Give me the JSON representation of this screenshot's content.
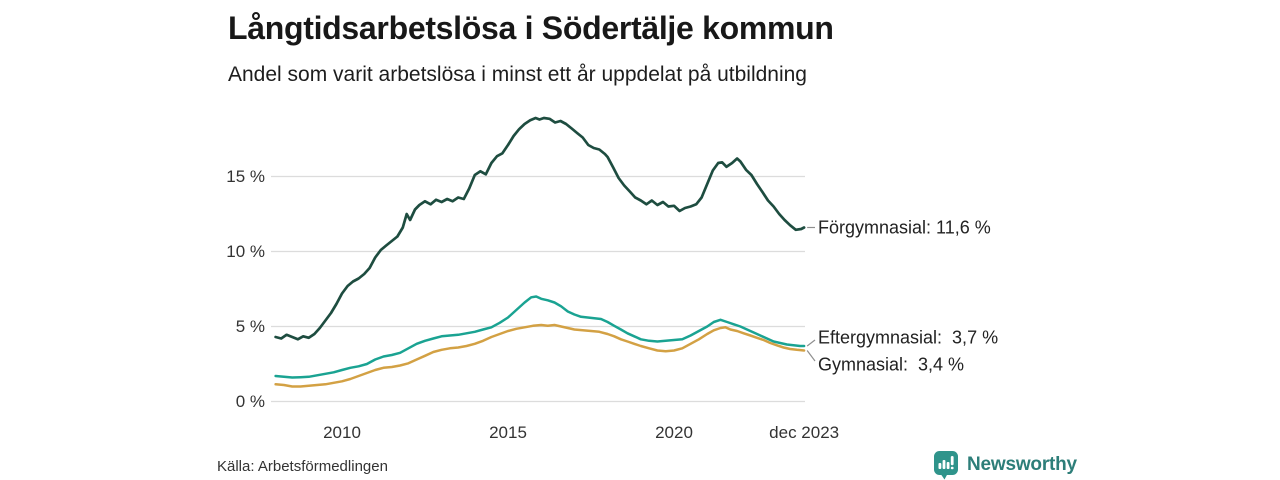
{
  "header": {
    "title": "Långtidsarbetslösa i Södertälje kommun",
    "subtitle": "Andel som varit arbetslösa i minst ett år uppdelat på utbildning"
  },
  "footer": {
    "source": "Källa: Arbetsförmedlingen",
    "branding": {
      "name": "Newsworthy",
      "logo_icon": "chart-speech-bubble-icon",
      "logo_color": "#2f948b",
      "wordmark_color": "#2d7e79"
    }
  },
  "colors": {
    "background": "#ffffff",
    "grid": "#dcdcdc",
    "connector": "#8f8f8f",
    "text_dark": "#181818",
    "axis_text": "#333333"
  },
  "chart_data": {
    "type": "line",
    "title": "Långtidsarbetslösa i Södertälje kommun",
    "subtitle": "Andel som varit arbetslösa i minst ett år uppdelat på utbildning",
    "unit": "%",
    "grid": true,
    "legend_position": "end-labels-right",
    "x_axis": {
      "range": [
        2007.95,
        2023.95
      ],
      "ticks": [
        {
          "t": 2010,
          "label": "2010"
        },
        {
          "t": 2015,
          "label": "2015"
        },
        {
          "t": 2020,
          "label": "2020"
        },
        {
          "t": 2023.92,
          "label": "dec 2023"
        }
      ]
    },
    "y_axis": {
      "range": [
        0,
        19.5
      ],
      "ticks": [
        {
          "v": 0,
          "label": "0 %"
        },
        {
          "v": 5,
          "label": "5 %"
        },
        {
          "v": 10,
          "label": "10 %"
        },
        {
          "v": 15,
          "label": "15 %"
        }
      ]
    },
    "series": [
      {
        "name": "Förgymnasial",
        "color": "#1e4d40",
        "stroke_width": 2.7,
        "end_value": 11.6,
        "end_label": "Förgymnasial: 11,6 %",
        "label_center_y_pct": 11.6,
        "points": [
          [
            2008.0,
            4.3
          ],
          [
            2008.17,
            4.2
          ],
          [
            2008.33,
            4.45
          ],
          [
            2008.5,
            4.3
          ],
          [
            2008.67,
            4.15
          ],
          [
            2008.83,
            4.35
          ],
          [
            2009.0,
            4.25
          ],
          [
            2009.17,
            4.5
          ],
          [
            2009.33,
            4.9
          ],
          [
            2009.5,
            5.4
          ],
          [
            2009.67,
            5.9
          ],
          [
            2009.83,
            6.5
          ],
          [
            2010.0,
            7.2
          ],
          [
            2010.17,
            7.7
          ],
          [
            2010.33,
            8.0
          ],
          [
            2010.5,
            8.2
          ],
          [
            2010.67,
            8.5
          ],
          [
            2010.83,
            8.9
          ],
          [
            2011.0,
            9.6
          ],
          [
            2011.17,
            10.1
          ],
          [
            2011.33,
            10.4
          ],
          [
            2011.5,
            10.7
          ],
          [
            2011.67,
            11.0
          ],
          [
            2011.83,
            11.6
          ],
          [
            2011.95,
            12.5
          ],
          [
            2012.05,
            12.1
          ],
          [
            2012.2,
            12.8
          ],
          [
            2012.33,
            13.1
          ],
          [
            2012.5,
            13.35
          ],
          [
            2012.67,
            13.15
          ],
          [
            2012.83,
            13.45
          ],
          [
            2013.0,
            13.3
          ],
          [
            2013.17,
            13.5
          ],
          [
            2013.33,
            13.35
          ],
          [
            2013.5,
            13.6
          ],
          [
            2013.67,
            13.5
          ],
          [
            2013.83,
            14.2
          ],
          [
            2014.0,
            15.1
          ],
          [
            2014.17,
            15.35
          ],
          [
            2014.33,
            15.15
          ],
          [
            2014.5,
            15.9
          ],
          [
            2014.67,
            16.35
          ],
          [
            2014.83,
            16.55
          ],
          [
            2015.0,
            17.1
          ],
          [
            2015.17,
            17.7
          ],
          [
            2015.33,
            18.15
          ],
          [
            2015.5,
            18.5
          ],
          [
            2015.67,
            18.75
          ],
          [
            2015.83,
            18.9
          ],
          [
            2015.95,
            18.8
          ],
          [
            2016.08,
            18.9
          ],
          [
            2016.25,
            18.85
          ],
          [
            2016.42,
            18.6
          ],
          [
            2016.58,
            18.7
          ],
          [
            2016.75,
            18.5
          ],
          [
            2016.92,
            18.2
          ],
          [
            2017.08,
            17.9
          ],
          [
            2017.25,
            17.6
          ],
          [
            2017.42,
            17.1
          ],
          [
            2017.58,
            16.9
          ],
          [
            2017.75,
            16.8
          ],
          [
            2017.92,
            16.5
          ],
          [
            2018.0,
            16.3
          ],
          [
            2018.17,
            15.6
          ],
          [
            2018.33,
            14.9
          ],
          [
            2018.5,
            14.4
          ],
          [
            2018.67,
            14.0
          ],
          [
            2018.83,
            13.6
          ],
          [
            2019.0,
            13.4
          ],
          [
            2019.17,
            13.15
          ],
          [
            2019.33,
            13.4
          ],
          [
            2019.5,
            13.1
          ],
          [
            2019.67,
            13.3
          ],
          [
            2019.83,
            13.0
          ],
          [
            2020.0,
            13.05
          ],
          [
            2020.17,
            12.7
          ],
          [
            2020.33,
            12.9
          ],
          [
            2020.5,
            13.0
          ],
          [
            2020.67,
            13.15
          ],
          [
            2020.83,
            13.6
          ],
          [
            2021.0,
            14.5
          ],
          [
            2021.17,
            15.4
          ],
          [
            2021.33,
            15.9
          ],
          [
            2021.45,
            15.95
          ],
          [
            2021.58,
            15.65
          ],
          [
            2021.75,
            15.9
          ],
          [
            2021.9,
            16.2
          ],
          [
            2022.0,
            16.0
          ],
          [
            2022.17,
            15.45
          ],
          [
            2022.33,
            15.1
          ],
          [
            2022.5,
            14.5
          ],
          [
            2022.67,
            13.95
          ],
          [
            2022.83,
            13.4
          ],
          [
            2023.0,
            13.0
          ],
          [
            2023.17,
            12.5
          ],
          [
            2023.33,
            12.1
          ],
          [
            2023.5,
            11.75
          ],
          [
            2023.67,
            11.45
          ],
          [
            2023.83,
            11.5
          ],
          [
            2023.92,
            11.6
          ]
        ]
      },
      {
        "name": "Eftergymnasial",
        "color": "#1aa392",
        "stroke_width": 2.5,
        "end_value": 3.7,
        "end_label": "Eftergymnasial:  3,7 %",
        "label_center_y_pct": 4.2,
        "points": [
          [
            2008.0,
            1.7
          ],
          [
            2008.25,
            1.65
          ],
          [
            2008.5,
            1.6
          ],
          [
            2008.75,
            1.62
          ],
          [
            2009.0,
            1.65
          ],
          [
            2009.25,
            1.75
          ],
          [
            2009.5,
            1.85
          ],
          [
            2009.75,
            1.95
          ],
          [
            2010.0,
            2.1
          ],
          [
            2010.25,
            2.25
          ],
          [
            2010.5,
            2.35
          ],
          [
            2010.75,
            2.5
          ],
          [
            2011.0,
            2.8
          ],
          [
            2011.25,
            3.0
          ],
          [
            2011.5,
            3.1
          ],
          [
            2011.75,
            3.25
          ],
          [
            2012.0,
            3.55
          ],
          [
            2012.25,
            3.85
          ],
          [
            2012.5,
            4.05
          ],
          [
            2012.75,
            4.2
          ],
          [
            2013.0,
            4.35
          ],
          [
            2013.25,
            4.4
          ],
          [
            2013.5,
            4.45
          ],
          [
            2013.75,
            4.55
          ],
          [
            2014.0,
            4.65
          ],
          [
            2014.25,
            4.8
          ],
          [
            2014.5,
            4.95
          ],
          [
            2014.75,
            5.25
          ],
          [
            2015.0,
            5.6
          ],
          [
            2015.25,
            6.1
          ],
          [
            2015.5,
            6.6
          ],
          [
            2015.7,
            6.95
          ],
          [
            2015.85,
            7.0
          ],
          [
            2016.0,
            6.85
          ],
          [
            2016.2,
            6.75
          ],
          [
            2016.4,
            6.6
          ],
          [
            2016.6,
            6.35
          ],
          [
            2016.8,
            6.0
          ],
          [
            2017.0,
            5.8
          ],
          [
            2017.2,
            5.65
          ],
          [
            2017.4,
            5.6
          ],
          [
            2017.6,
            5.55
          ],
          [
            2017.8,
            5.5
          ],
          [
            2018.0,
            5.3
          ],
          [
            2018.2,
            5.05
          ],
          [
            2018.4,
            4.8
          ],
          [
            2018.6,
            4.55
          ],
          [
            2018.8,
            4.35
          ],
          [
            2019.0,
            4.15
          ],
          [
            2019.25,
            4.05
          ],
          [
            2019.5,
            4.0
          ],
          [
            2019.75,
            4.05
          ],
          [
            2020.0,
            4.1
          ],
          [
            2020.25,
            4.15
          ],
          [
            2020.5,
            4.4
          ],
          [
            2020.75,
            4.7
          ],
          [
            2021.0,
            5.0
          ],
          [
            2021.2,
            5.3
          ],
          [
            2021.4,
            5.45
          ],
          [
            2021.6,
            5.3
          ],
          [
            2021.8,
            5.15
          ],
          [
            2022.0,
            5.0
          ],
          [
            2022.2,
            4.8
          ],
          [
            2022.4,
            4.6
          ],
          [
            2022.6,
            4.4
          ],
          [
            2022.8,
            4.2
          ],
          [
            2023.0,
            4.0
          ],
          [
            2023.2,
            3.9
          ],
          [
            2023.4,
            3.8
          ],
          [
            2023.6,
            3.75
          ],
          [
            2023.8,
            3.7
          ],
          [
            2023.92,
            3.7
          ]
        ]
      },
      {
        "name": "Gymnasial",
        "color": "#d3a144",
        "stroke_width": 2.5,
        "end_value": 3.4,
        "end_label": "Gymnasial:  3,4 %",
        "label_center_y_pct": 2.4,
        "points": [
          [
            2008.0,
            1.15
          ],
          [
            2008.25,
            1.1
          ],
          [
            2008.5,
            1.0
          ],
          [
            2008.75,
            1.0
          ],
          [
            2009.0,
            1.05
          ],
          [
            2009.25,
            1.1
          ],
          [
            2009.5,
            1.15
          ],
          [
            2009.75,
            1.25
          ],
          [
            2010.0,
            1.35
          ],
          [
            2010.25,
            1.5
          ],
          [
            2010.5,
            1.7
          ],
          [
            2010.75,
            1.9
          ],
          [
            2011.0,
            2.1
          ],
          [
            2011.25,
            2.25
          ],
          [
            2011.5,
            2.3
          ],
          [
            2011.75,
            2.4
          ],
          [
            2012.0,
            2.55
          ],
          [
            2012.25,
            2.8
          ],
          [
            2012.5,
            3.05
          ],
          [
            2012.75,
            3.3
          ],
          [
            2013.0,
            3.45
          ],
          [
            2013.25,
            3.55
          ],
          [
            2013.5,
            3.6
          ],
          [
            2013.75,
            3.7
          ],
          [
            2014.0,
            3.85
          ],
          [
            2014.25,
            4.05
          ],
          [
            2014.5,
            4.3
          ],
          [
            2014.75,
            4.5
          ],
          [
            2015.0,
            4.7
          ],
          [
            2015.25,
            4.85
          ],
          [
            2015.5,
            4.95
          ],
          [
            2015.75,
            5.05
          ],
          [
            2016.0,
            5.1
          ],
          [
            2016.2,
            5.05
          ],
          [
            2016.4,
            5.1
          ],
          [
            2016.6,
            5.0
          ],
          [
            2016.8,
            4.9
          ],
          [
            2017.0,
            4.8
          ],
          [
            2017.25,
            4.75
          ],
          [
            2017.5,
            4.7
          ],
          [
            2017.75,
            4.65
          ],
          [
            2018.0,
            4.5
          ],
          [
            2018.2,
            4.35
          ],
          [
            2018.4,
            4.15
          ],
          [
            2018.6,
            4.0
          ],
          [
            2018.8,
            3.85
          ],
          [
            2019.0,
            3.7
          ],
          [
            2019.25,
            3.55
          ],
          [
            2019.5,
            3.4
          ],
          [
            2019.75,
            3.35
          ],
          [
            2020.0,
            3.4
          ],
          [
            2020.25,
            3.55
          ],
          [
            2020.5,
            3.85
          ],
          [
            2020.75,
            4.15
          ],
          [
            2021.0,
            4.5
          ],
          [
            2021.2,
            4.75
          ],
          [
            2021.4,
            4.9
          ],
          [
            2021.55,
            4.95
          ],
          [
            2021.7,
            4.8
          ],
          [
            2021.9,
            4.7
          ],
          [
            2022.1,
            4.55
          ],
          [
            2022.3,
            4.4
          ],
          [
            2022.5,
            4.25
          ],
          [
            2022.7,
            4.1
          ],
          [
            2022.9,
            3.9
          ],
          [
            2023.1,
            3.75
          ],
          [
            2023.3,
            3.6
          ],
          [
            2023.5,
            3.5
          ],
          [
            2023.7,
            3.45
          ],
          [
            2023.92,
            3.4
          ]
        ]
      }
    ]
  }
}
